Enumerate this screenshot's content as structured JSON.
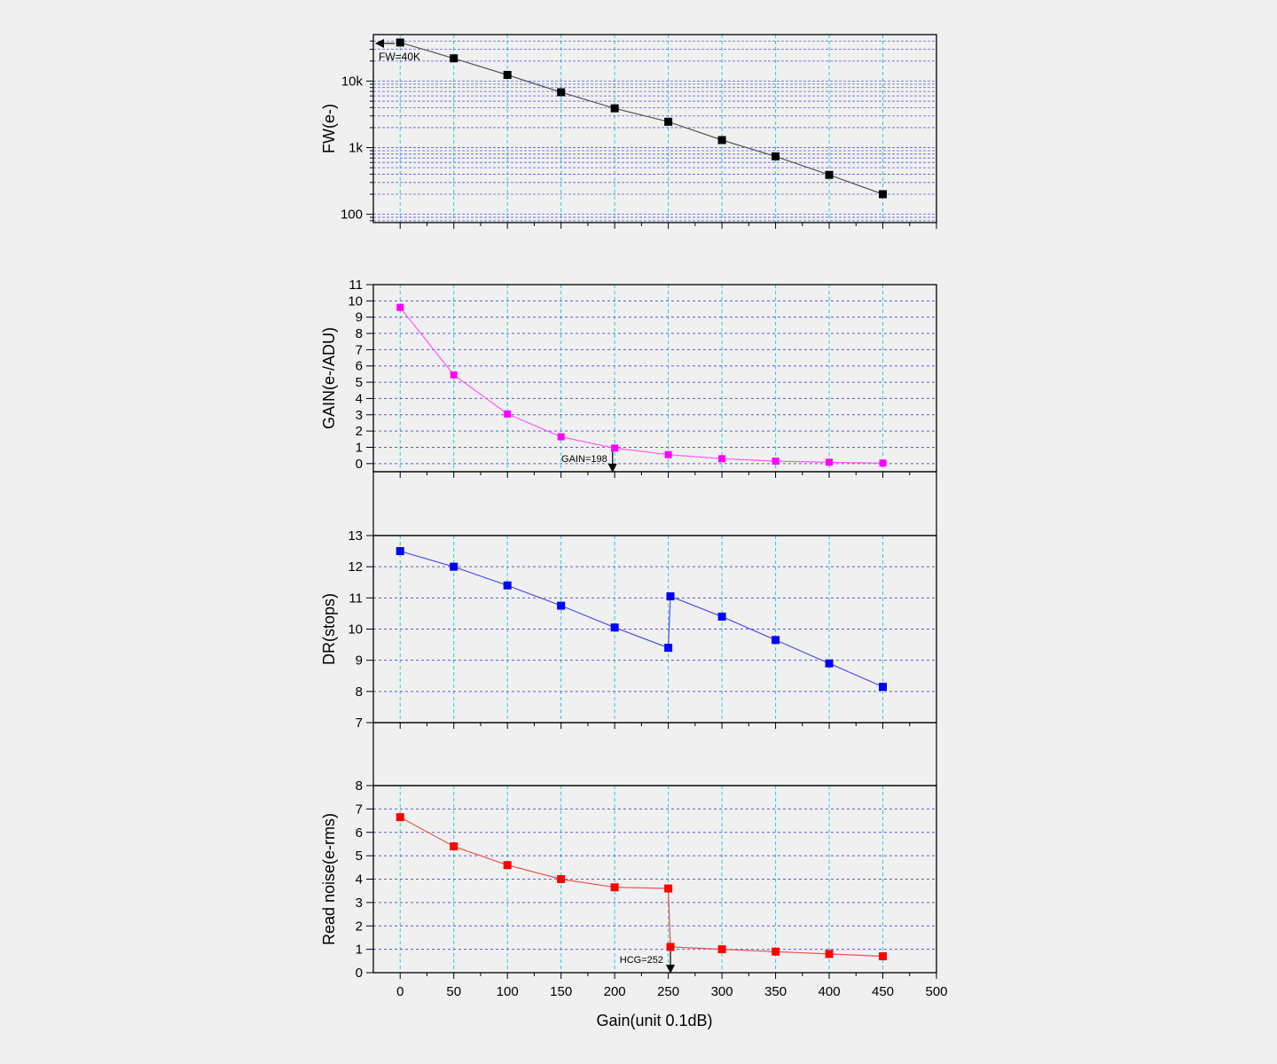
{
  "figure": {
    "xlabel": "Gain(unit 0.1dB)",
    "xticks": [
      "0",
      "50",
      "100",
      "150",
      "200",
      "250",
      "300",
      "350",
      "400",
      "450",
      "500"
    ],
    "xlim": [
      -25,
      500
    ],
    "colors": {
      "background": "#f0f0f0",
      "plot_bg": "#f0f0f0",
      "h_grid": "#5a5ad2",
      "v_grid": "#20d0e0",
      "fw_series": "#000000",
      "gain_series": "#ff00ff",
      "dr_series": "#0000ff",
      "noise_series": "#ff0000",
      "fw_line": "#555555",
      "gain_line": "#ff55ff",
      "dr_line": "#5050ee",
      "noise_line": "#ee5050"
    }
  },
  "chart_data": [
    {
      "type": "line",
      "ylabel": "FW(e-)",
      "yscale": "log",
      "ylim": [
        75,
        50000
      ],
      "yticks": [
        "100",
        "1k",
        "10k"
      ],
      "grid": true,
      "x": [
        0,
        50,
        100,
        150,
        200,
        250,
        300,
        350,
        400,
        450
      ],
      "series": [
        {
          "values": [
            38000,
            22000,
            12400,
            6800,
            3900,
            2450,
            1300,
            740,
            390,
            200
          ]
        }
      ],
      "annotations": [
        {
          "text": "FW=40K",
          "x": 0,
          "y": 38000
        }
      ]
    },
    {
      "type": "line",
      "ylabel": "GAIN(e-/ADU)",
      "ylim": [
        -0.5,
        11
      ],
      "yticks": [
        "0",
        "1",
        "2",
        "3",
        "4",
        "5",
        "6",
        "7",
        "8",
        "9",
        "10",
        "11"
      ],
      "grid": true,
      "x": [
        0,
        50,
        100,
        150,
        200,
        250,
        300,
        350,
        400,
        450
      ],
      "series": [
        {
          "values": [
            9.6,
            5.45,
            3.05,
            1.65,
            0.95,
            0.55,
            0.3,
            0.15,
            0.08,
            0.03
          ]
        }
      ],
      "annotations": [
        {
          "text": "GAIN=198",
          "x": 198,
          "y": 1.0
        }
      ]
    },
    {
      "type": "line",
      "ylabel": "DR(stops)",
      "ylim": [
        7,
        13
      ],
      "yticks": [
        "7",
        "8",
        "9",
        "10",
        "11",
        "12",
        "13"
      ],
      "grid": true,
      "x": [
        0,
        50,
        100,
        150,
        200,
        250,
        252,
        300,
        350,
        400,
        450
      ],
      "series": [
        {
          "values": [
            12.5,
            12.0,
            11.4,
            10.75,
            10.05,
            9.4,
            11.05,
            10.4,
            9.65,
            8.9,
            8.15
          ]
        }
      ]
    },
    {
      "type": "line",
      "ylabel": "Read noise(e-rms)",
      "ylim": [
        0,
        8
      ],
      "yticks": [
        "0",
        "1",
        "2",
        "3",
        "4",
        "5",
        "6",
        "7",
        "8"
      ],
      "grid": true,
      "x": [
        0,
        50,
        100,
        150,
        200,
        250,
        252,
        300,
        350,
        400,
        450
      ],
      "series": [
        {
          "values": [
            6.65,
            5.4,
            4.6,
            4.0,
            3.65,
            3.6,
            1.1,
            1.0,
            0.9,
            0.8,
            0.7
          ]
        }
      ],
      "annotations": [
        {
          "text": "HCG=252",
          "x": 252,
          "y": 1.1
        }
      ]
    }
  ]
}
